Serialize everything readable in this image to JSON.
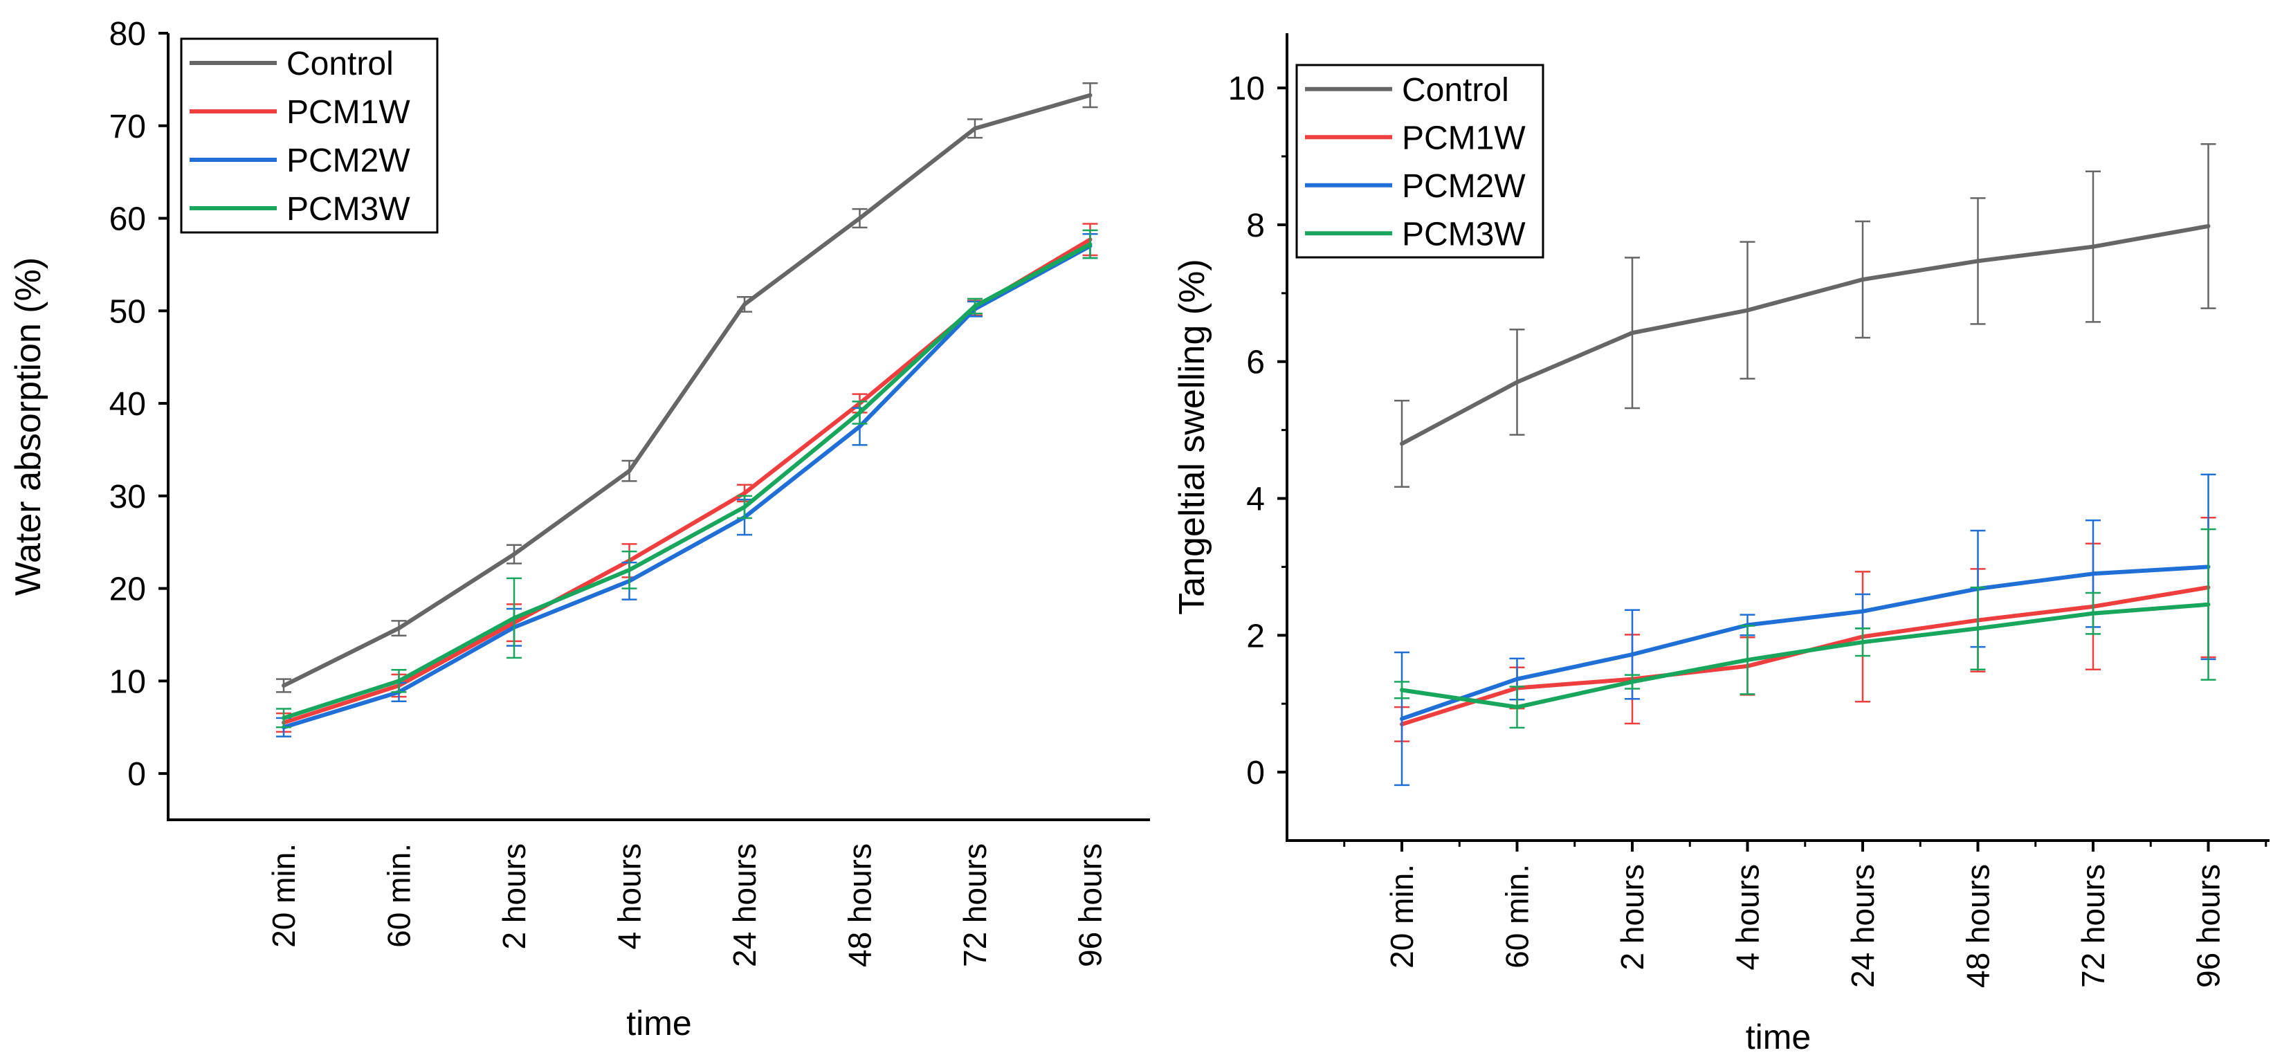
{
  "colors": {
    "Control": "#666666",
    "PCM1W": "#ee3e3e",
    "PCM2W": "#1f6fd6",
    "PCM3W": "#17a65b",
    "axis": "#000000"
  },
  "chart_data": [
    {
      "type": "line",
      "title": "",
      "xlabel": "time",
      "ylabel": "Water absorption (%)",
      "categories": [
        "20 min.",
        "60 min.",
        "2 hours",
        "4 hours",
        "24 hours",
        "48 hours",
        "72 hours",
        "96 hours"
      ],
      "ylim": [
        -5,
        80
      ],
      "yticks": [
        0,
        10,
        20,
        30,
        40,
        50,
        60,
        70,
        80
      ],
      "grid": false,
      "legend": "top-left",
      "series": [
        {
          "name": "Control",
          "values": [
            9.5,
            15.7,
            23.7,
            32.7,
            50.7,
            60.0,
            69.7,
            73.3
          ],
          "errors": [
            0.7,
            0.8,
            1.0,
            1.1,
            0.8,
            1.0,
            1.0,
            1.3
          ]
        },
        {
          "name": "PCM1W",
          "values": [
            5.5,
            9.5,
            16.3,
            23.0,
            30.3,
            40.0,
            50.3,
            57.7
          ],
          "errors": [
            1.0,
            1.2,
            2.0,
            1.8,
            0.9,
            1.0,
            0.8,
            1.7
          ]
        },
        {
          "name": "PCM2W",
          "values": [
            5.0,
            8.8,
            15.8,
            20.8,
            27.7,
            37.5,
            50.2,
            57.0
          ],
          "errors": [
            1.0,
            1.0,
            2.0,
            2.0,
            1.9,
            2.0,
            0.8,
            1.3
          ]
        },
        {
          "name": "PCM3W",
          "values": [
            6.0,
            10.0,
            16.8,
            22.0,
            28.8,
            39.0,
            50.5,
            57.2
          ],
          "errors": [
            1.0,
            1.2,
            4.3,
            2.0,
            1.2,
            1.2,
            0.8,
            1.5
          ]
        }
      ]
    },
    {
      "type": "line",
      "title": "",
      "xlabel": "time",
      "ylabel": "Tangeltial swelling (%)",
      "categories": [
        "20 min.",
        "60 min.",
        "2 hours",
        "4 hours",
        "24 hours",
        "48 hours",
        "72 hours",
        "96 hours"
      ],
      "ylim": [
        -1,
        10.8
      ],
      "yticks": [
        0,
        2,
        4,
        6,
        8,
        10
      ],
      "grid": false,
      "legend": "top-left",
      "series": [
        {
          "name": "Control",
          "values": [
            4.8,
            5.7,
            6.42,
            6.75,
            7.2,
            7.47,
            7.68,
            7.98
          ],
          "errors": [
            0.63,
            0.77,
            1.1,
            1.0,
            0.85,
            0.92,
            1.1,
            1.2
          ]
        },
        {
          "name": "PCM1W",
          "values": [
            0.7,
            1.23,
            1.36,
            1.55,
            1.98,
            2.22,
            2.42,
            2.7
          ],
          "errors": [
            0.25,
            0.3,
            0.65,
            0.42,
            0.95,
            0.75,
            0.92,
            1.02
          ]
        },
        {
          "name": "PCM2W",
          "values": [
            0.78,
            1.36,
            1.72,
            2.15,
            2.35,
            2.68,
            2.9,
            3.0
          ],
          "errors": [
            0.97,
            0.3,
            0.65,
            0.15,
            0.25,
            0.85,
            0.78,
            1.35
          ]
        },
        {
          "name": "PCM3W",
          "values": [
            1.2,
            0.95,
            1.32,
            1.64,
            1.9,
            2.1,
            2.32,
            2.45
          ],
          "errors": [
            0.12,
            0.3,
            0.1,
            0.5,
            0.2,
            0.6,
            0.3,
            1.1
          ]
        }
      ]
    }
  ]
}
